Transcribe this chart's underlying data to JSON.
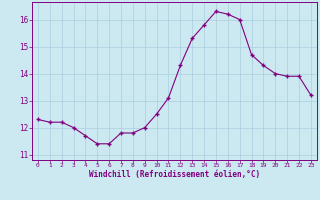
{
  "x": [
    0,
    1,
    2,
    3,
    4,
    5,
    6,
    7,
    8,
    9,
    10,
    11,
    12,
    13,
    14,
    15,
    16,
    17,
    18,
    19,
    20,
    21,
    22,
    23
  ],
  "y": [
    12.3,
    12.2,
    12.2,
    12.0,
    11.7,
    11.4,
    11.4,
    11.8,
    11.8,
    12.0,
    12.5,
    13.1,
    14.3,
    15.3,
    15.8,
    16.3,
    16.2,
    16.0,
    14.7,
    14.3,
    14.0,
    13.9,
    13.9,
    13.2
  ],
  "xlabel": "Windchill (Refroidissement éolien,°C)",
  "ylim": [
    10.8,
    16.65
  ],
  "xlim": [
    -0.5,
    23.5
  ],
  "yticks": [
    11,
    12,
    13,
    14,
    15,
    16
  ],
  "xticks": [
    0,
    1,
    2,
    3,
    4,
    5,
    6,
    7,
    8,
    9,
    10,
    11,
    12,
    13,
    14,
    15,
    16,
    17,
    18,
    19,
    20,
    21,
    22,
    23
  ],
  "line_color": "#800080",
  "marker_color": "#800080",
  "bg_color": "#cce8f0",
  "grid_color": "#aacfdf",
  "grid_color_v": "#b8d8e8"
}
